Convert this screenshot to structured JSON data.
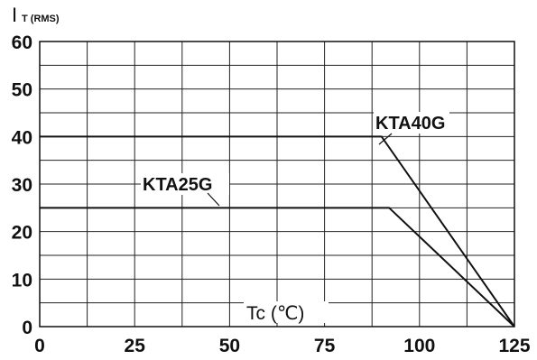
{
  "chart_data": {
    "type": "line",
    "ylabel_main": "I",
    "ylabel_sub": "T (RMS)",
    "xlabel": "Tc (℃)",
    "xlim": [
      0,
      125
    ],
    "ylim": [
      0,
      60
    ],
    "x_ticks": [
      "0",
      "25",
      "50",
      "75",
      "100",
      "125"
    ],
    "y_ticks": [
      "0",
      "10",
      "20",
      "30",
      "40",
      "50",
      "60"
    ],
    "grid": true,
    "series": [
      {
        "name": "KTA40G",
        "x": [
          0,
          90,
          125
        ],
        "y": [
          40,
          40,
          0
        ]
      },
      {
        "name": "KTA25G",
        "x": [
          0,
          92,
          125
        ],
        "y": [
          25,
          25,
          0
        ]
      }
    ]
  }
}
